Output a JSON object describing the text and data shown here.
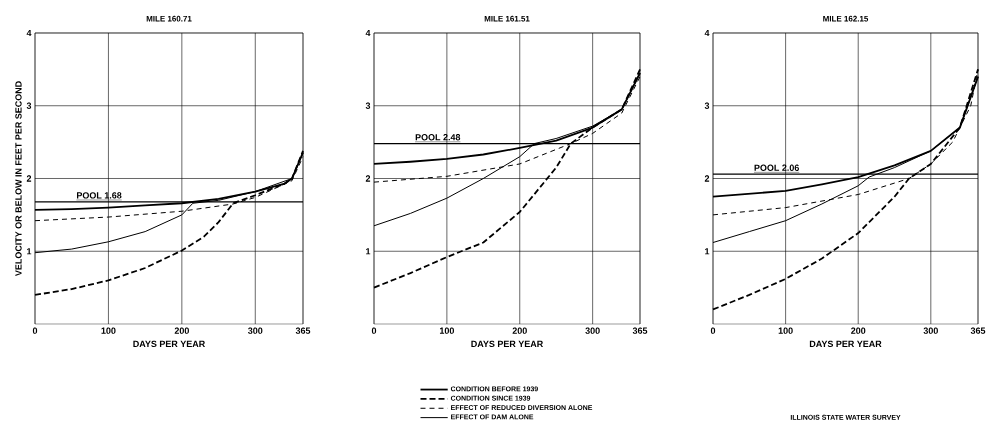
{
  "chart_data": [
    {
      "type": "line",
      "title": "MILE 160.71",
      "xlabel": "DAYS PER YEAR",
      "ylabel": "VELOCITY OR BELOW IN FEET PER SECOND",
      "xlim": [
        0,
        365
      ],
      "ylim": [
        0,
        4
      ],
      "xticks": [
        0,
        100,
        200,
        300,
        365
      ],
      "yticks": [
        1,
        2,
        3,
        4
      ],
      "grid": true,
      "series": [
        {
          "color": "#000000",
          "line_style": "solid",
          "x": [
            0,
            50,
            100,
            150,
            200,
            250,
            300,
            340,
            350,
            365
          ],
          "values": [
            1.57,
            1.58,
            1.6,
            1.63,
            1.66,
            1.72,
            1.82,
            1.93,
            2.0,
            2.36
          ]
        },
        {
          "color": "#000000",
          "line_style": "dashed",
          "x": [
            0,
            50,
            100,
            150,
            200,
            230,
            250,
            270,
            300,
            340,
            350,
            365
          ],
          "values": [
            0.4,
            0.48,
            0.6,
            0.77,
            1.01,
            1.2,
            1.4,
            1.66,
            1.77,
            1.93,
            2.0,
            2.38
          ]
        },
        {
          "color": "#000000",
          "line_style": "dashed",
          "x": [
            0,
            100,
            200,
            270,
            300,
            350,
            365
          ],
          "values": [
            1.42,
            1.47,
            1.55,
            1.65,
            1.74,
            1.97,
            2.3
          ]
        },
        {
          "color": "#000000",
          "line_style": "solid",
          "x": [
            0,
            50,
            100,
            150,
            200,
            215,
            250,
            300,
            350,
            365
          ],
          "values": [
            0.98,
            1.03,
            1.13,
            1.27,
            1.5,
            1.66,
            1.7,
            1.82,
            2.0,
            2.35
          ]
        }
      ],
      "ref_lines": [
        {
          "axis": "y",
          "value": 1.68,
          "label": "POOL 1.68"
        }
      ]
    },
    {
      "type": "line",
      "title": "MILE 161.51",
      "xlabel": "DAYS PER YEAR",
      "xlim": [
        0,
        365
      ],
      "ylim": [
        0,
        4
      ],
      "xticks": [
        0,
        100,
        200,
        300,
        365
      ],
      "yticks": [
        1,
        2,
        3,
        4
      ],
      "grid": true,
      "legend": "bottom",
      "series": [
        {
          "name": "CONDITION BEFORE 1939",
          "color": "#000000",
          "line_style": "solid",
          "x": [
            0,
            50,
            100,
            150,
            200,
            250,
            300,
            340,
            365
          ],
          "values": [
            2.2,
            2.23,
            2.27,
            2.33,
            2.42,
            2.52,
            2.7,
            2.95,
            3.45
          ]
        },
        {
          "name": "CONDITION SINCE 1939",
          "color": "#000000",
          "line_style": "dashed",
          "x": [
            0,
            50,
            100,
            150,
            200,
            250,
            270,
            300,
            340,
            365
          ],
          "values": [
            0.5,
            0.7,
            0.92,
            1.12,
            1.54,
            2.15,
            2.48,
            2.7,
            2.95,
            3.5
          ]
        },
        {
          "name": "EFFECT OF REDUCED DIVERSION ALONE",
          "color": "#000000",
          "line_style": "dashed",
          "x": [
            0,
            100,
            200,
            270,
            300,
            340,
            365
          ],
          "values": [
            1.95,
            2.03,
            2.2,
            2.48,
            2.62,
            2.9,
            3.4
          ]
        },
        {
          "name": "EFFECT OF DAM ALONE",
          "color": "#000000",
          "line_style": "solid",
          "x": [
            0,
            50,
            100,
            150,
            200,
            220,
            250,
            300,
            340,
            365
          ],
          "values": [
            1.35,
            1.52,
            1.73,
            2.0,
            2.3,
            2.48,
            2.55,
            2.72,
            2.95,
            3.45
          ]
        }
      ],
      "ref_lines": [
        {
          "axis": "y",
          "value": 2.48,
          "label": "POOL 2.48"
        }
      ]
    },
    {
      "type": "line",
      "title": "MILE 162.15",
      "xlabel": "DAYS PER YEAR",
      "xlim": [
        0,
        365
      ],
      "ylim": [
        0,
        4
      ],
      "xticks": [
        0,
        100,
        200,
        300,
        365
      ],
      "yticks": [
        1,
        2,
        3,
        4
      ],
      "grid": true,
      "series": [
        {
          "color": "#000000",
          "line_style": "solid",
          "x": [
            0,
            100,
            150,
            200,
            250,
            300,
            340,
            365
          ],
          "values": [
            1.75,
            1.83,
            1.92,
            2.02,
            2.18,
            2.38,
            2.7,
            3.4
          ]
        },
        {
          "color": "#000000",
          "line_style": "dashed",
          "x": [
            0,
            50,
            100,
            150,
            200,
            250,
            270,
            300,
            340,
            365
          ],
          "values": [
            0.2,
            0.4,
            0.62,
            0.9,
            1.25,
            1.75,
            2.0,
            2.2,
            2.7,
            3.5
          ]
        },
        {
          "color": "#000000",
          "line_style": "dashed",
          "x": [
            0,
            100,
            200,
            270,
            300,
            330,
            355,
            365
          ],
          "values": [
            1.5,
            1.6,
            1.78,
            2.0,
            2.2,
            2.5,
            3.0,
            3.5
          ]
        },
        {
          "color": "#000000",
          "line_style": "solid",
          "x": [
            0,
            50,
            100,
            150,
            200,
            215,
            250,
            300,
            340,
            365
          ],
          "values": [
            1.12,
            1.27,
            1.42,
            1.65,
            1.9,
            2.02,
            2.15,
            2.38,
            2.7,
            3.4
          ]
        }
      ],
      "ref_lines": [
        {
          "axis": "y",
          "value": 2.06,
          "label": "POOL 2.06"
        }
      ],
      "annotations": [
        "ILLINOIS STATE WATER SURVEY"
      ]
    }
  ]
}
